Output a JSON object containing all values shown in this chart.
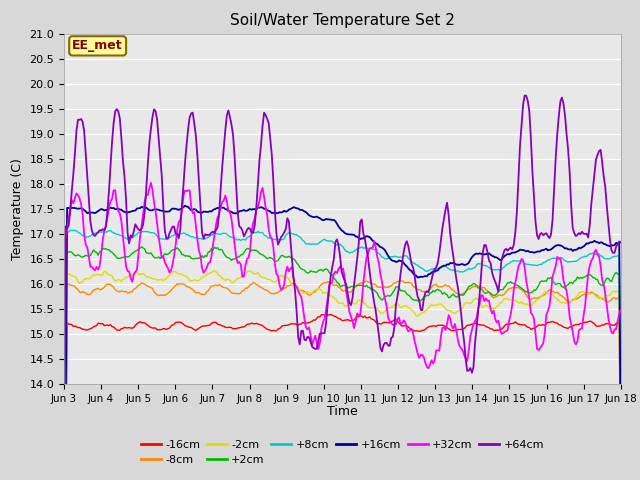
{
  "title": "Soil/Water Temperature Set 2",
  "xlabel": "Time",
  "ylabel": "Temperature (C)",
  "ylim": [
    14.0,
    21.0
  ],
  "yticks": [
    14.0,
    14.5,
    15.0,
    15.5,
    16.0,
    16.5,
    17.0,
    17.5,
    18.0,
    18.5,
    19.0,
    19.5,
    20.0,
    20.5,
    21.0
  ],
  "xtick_labels": [
    "Jun 3",
    "Jun 4",
    "Jun 5",
    "Jun 6",
    "Jun 7",
    "Jun 8",
    "Jun 9",
    "Jun 10",
    "Jun 11",
    "Jun 12",
    "Jun 13",
    "Jun 14",
    "Jun 15",
    "Jun 16",
    "Jun 17",
    "Jun 18"
  ],
  "series": {
    "-16cm": {
      "color": "#ff0000",
      "lw": 1.0
    },
    "-8cm": {
      "color": "#ff8800",
      "lw": 1.0
    },
    "-2cm": {
      "color": "#dddd00",
      "lw": 1.0
    },
    "+2cm": {
      "color": "#00bb00",
      "lw": 1.0
    },
    "+8cm": {
      "color": "#00cccc",
      "lw": 1.0
    },
    "+16cm": {
      "color": "#000099",
      "lw": 1.3
    },
    "+32cm": {
      "color": "#ff00ff",
      "lw": 1.3
    },
    "+64cm": {
      "color": "#8800bb",
      "lw": 1.3
    }
  },
  "annotation_text": "EE_met",
  "annotation_bg": "#ffff99",
  "annotation_border": "#886600",
  "fig_bg": "#d8d8d8",
  "plot_bg": "#e8e8e8",
  "legend_ncol_row1": 6,
  "legend_ncol_row2": 2
}
